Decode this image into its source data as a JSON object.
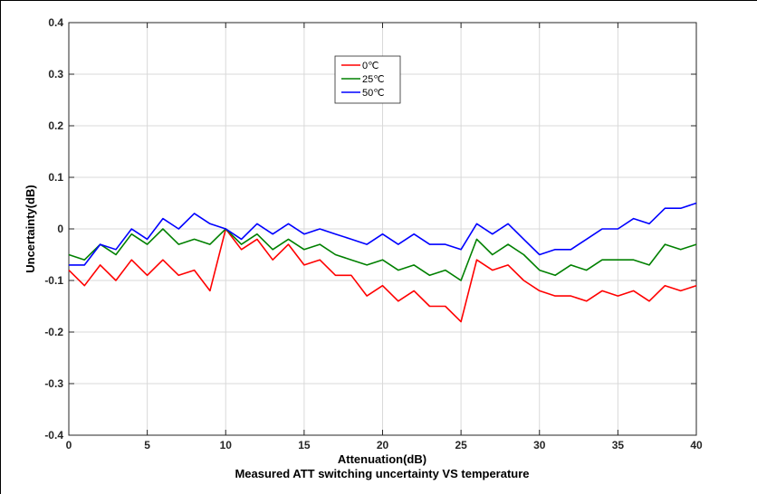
{
  "chart_data": {
    "type": "line",
    "title": "Measured ATT switching uncertainty VS temperature",
    "xlabel": "Attenuation(dB)",
    "ylabel": "Uncertainty(dB)",
    "xlim": [
      0,
      40
    ],
    "ylim": [
      -0.4,
      0.4
    ],
    "xticks": [
      0,
      5,
      10,
      15,
      20,
      25,
      30,
      35,
      40
    ],
    "xtick_labels": [
      "0",
      "5",
      "10",
      "15",
      "20",
      "25",
      "30",
      "35",
      "40"
    ],
    "yticks": [
      -0.4,
      -0.3,
      -0.2,
      -0.1,
      0,
      0.1,
      0.2,
      0.3,
      0.4
    ],
    "ytick_labels": [
      "-0.4",
      "-0.3",
      "-0.2",
      "-0.1",
      "0",
      "0.1",
      "0.2",
      "0.3",
      "0.4"
    ],
    "grid": true,
    "legend_position": "upper-middle",
    "x": [
      0,
      1,
      2,
      3,
      4,
      5,
      6,
      7,
      8,
      9,
      10,
      11,
      12,
      13,
      14,
      15,
      16,
      17,
      18,
      19,
      20,
      21,
      22,
      23,
      24,
      25,
      26,
      27,
      28,
      29,
      30,
      31,
      32,
      33,
      34,
      35,
      36,
      37,
      38,
      39,
      40
    ],
    "series": [
      {
        "name": "0℃",
        "color": "#ff0000",
        "values": [
          -0.08,
          -0.11,
          -0.07,
          -0.1,
          -0.06,
          -0.09,
          -0.06,
          -0.09,
          -0.08,
          -0.12,
          0.0,
          -0.04,
          -0.02,
          -0.06,
          -0.03,
          -0.07,
          -0.06,
          -0.09,
          -0.09,
          -0.13,
          -0.11,
          -0.14,
          -0.12,
          -0.15,
          -0.15,
          -0.18,
          -0.06,
          -0.08,
          -0.07,
          -0.1,
          -0.12,
          -0.13,
          -0.13,
          -0.14,
          -0.12,
          -0.13,
          -0.12,
          -0.14,
          -0.11,
          -0.12,
          -0.11
        ]
      },
      {
        "name": "25℃",
        "color": "#008000",
        "values": [
          -0.05,
          -0.06,
          -0.03,
          -0.05,
          -0.01,
          -0.03,
          0.0,
          -0.03,
          -0.02,
          -0.03,
          0.0,
          -0.03,
          -0.01,
          -0.04,
          -0.02,
          -0.04,
          -0.03,
          -0.05,
          -0.06,
          -0.07,
          -0.06,
          -0.08,
          -0.07,
          -0.09,
          -0.08,
          -0.1,
          -0.02,
          -0.05,
          -0.03,
          -0.05,
          -0.08,
          -0.09,
          -0.07,
          -0.08,
          -0.06,
          -0.06,
          -0.06,
          -0.07,
          -0.03,
          -0.04,
          -0.03
        ]
      },
      {
        "name": "50℃",
        "color": "#0000ff",
        "values": [
          -0.07,
          -0.07,
          -0.03,
          -0.04,
          0.0,
          -0.02,
          0.02,
          0.0,
          0.03,
          0.01,
          0.0,
          -0.02,
          0.01,
          -0.01,
          0.01,
          -0.01,
          0.0,
          -0.01,
          -0.02,
          -0.03,
          -0.01,
          -0.03,
          -0.01,
          -0.03,
          -0.03,
          -0.04,
          0.01,
          -0.01,
          0.01,
          -0.02,
          -0.05,
          -0.04,
          -0.04,
          -0.02,
          0.0,
          0.0,
          0.02,
          0.01,
          0.04,
          0.04,
          0.05
        ]
      }
    ]
  }
}
